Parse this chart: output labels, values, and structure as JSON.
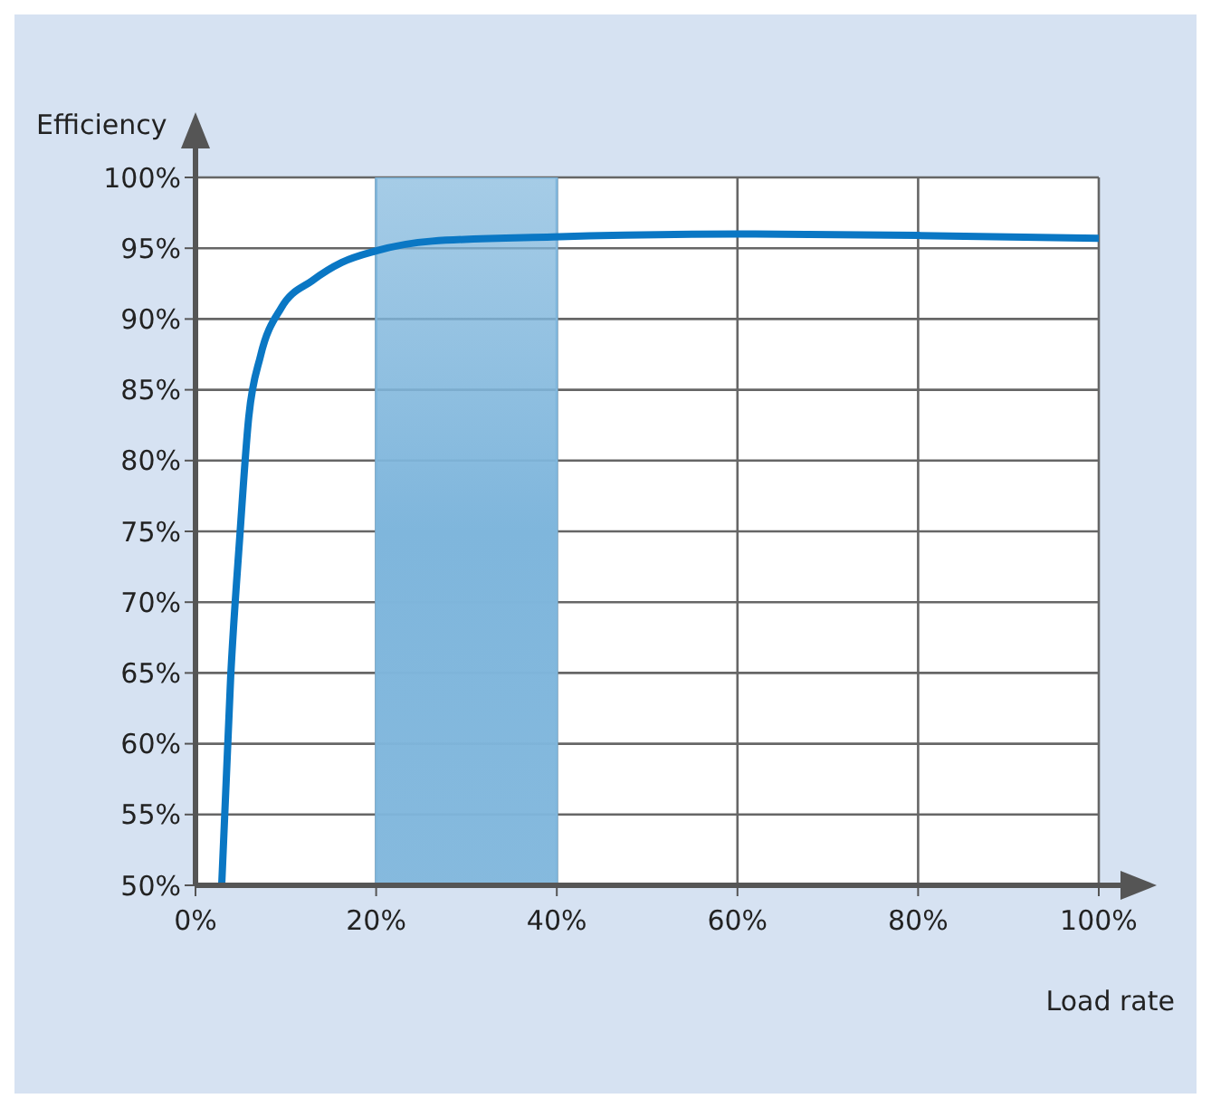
{
  "chart_data": {
    "type": "line",
    "xlabel": "Load rate",
    "ylabel": "Efficiency",
    "series": [
      {
        "color": "#0a77c4",
        "x": [
          2.9,
          3.9,
          4.9,
          5.9,
          7.2,
          9.5,
          12.9,
          16.2,
          19.9,
          26.2,
          39.5,
          60,
          80,
          100
        ],
        "values": [
          50,
          64.8,
          74.6,
          83.1,
          87.4,
          90.8,
          92.7,
          94.0,
          94.8,
          95.5,
          95.8,
          96,
          95.9,
          95.7
        ]
      }
    ],
    "xlim": [
      0,
      100
    ],
    "ylim": [
      50,
      100
    ],
    "xticks": [
      {
        "value": 0,
        "label": "0%"
      },
      {
        "value": 20,
        "label": "20%"
      },
      {
        "value": 40,
        "label": "40%"
      },
      {
        "value": 60,
        "label": "60%"
      },
      {
        "value": 80,
        "label": "80%"
      },
      {
        "value": 100,
        "label": "100%"
      }
    ],
    "yticks": [
      {
        "value": 50,
        "label": "50%"
      },
      {
        "value": 55,
        "label": "55%"
      },
      {
        "value": 60,
        "label": "60%"
      },
      {
        "value": 65,
        "label": "65%"
      },
      {
        "value": 70,
        "label": "70%"
      },
      {
        "value": 75,
        "label": "75%"
      },
      {
        "value": 80,
        "label": "80%"
      },
      {
        "value": 85,
        "label": "85%"
      },
      {
        "value": 90,
        "label": "90%"
      },
      {
        "value": 95,
        "label": "95%"
      },
      {
        "value": 100,
        "label": "100%"
      }
    ],
    "bands": [
      {
        "axis": "x",
        "from": 20,
        "to": 40,
        "color": "#7fb6dc"
      }
    ],
    "grid": true,
    "marker": "none",
    "line_style": "solid"
  }
}
